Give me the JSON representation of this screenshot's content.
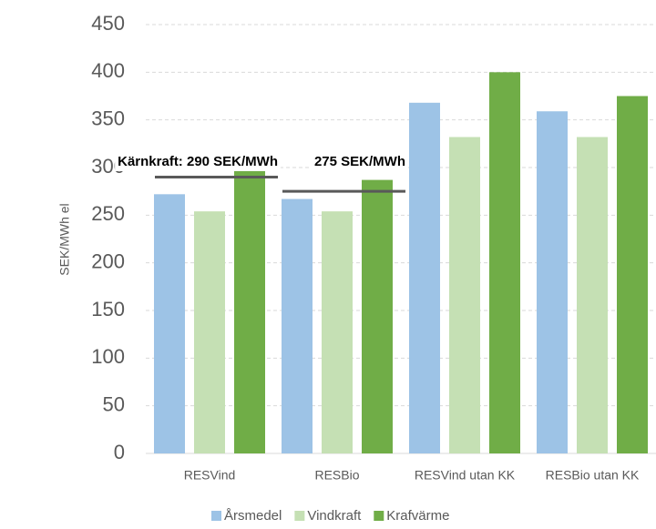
{
  "chart_data": {
    "type": "bar",
    "y_label": "SEK/MWh el",
    "categories": [
      "RESVind",
      "RESBio",
      "RESVind utan KK",
      "RESBio utan KK"
    ],
    "series": [
      {
        "name": "Årsmedel",
        "color": "#9dc3e6",
        "values": [
          272,
          267,
          368,
          359
        ]
      },
      {
        "name": "Vindkraft",
        "color": "#c5e0b4",
        "values": [
          254,
          254,
          332,
          332
        ]
      },
      {
        "name": "Krafvärme",
        "color": "#70ad47",
        "values": [
          306,
          287,
          400,
          375
        ]
      }
    ],
    "annotations": [
      {
        "text": "Kärnkraft: 290 SEK/MWh",
        "value": 290,
        "category": 0
      },
      {
        "text": "275 SEK/MWh",
        "value": 275,
        "category": 1
      }
    ],
    "ylim": [
      0,
      450
    ],
    "yticks": [
      0,
      50,
      100,
      150,
      200,
      250,
      300,
      350,
      400,
      450
    ],
    "grid": true,
    "legend": "bottom"
  }
}
